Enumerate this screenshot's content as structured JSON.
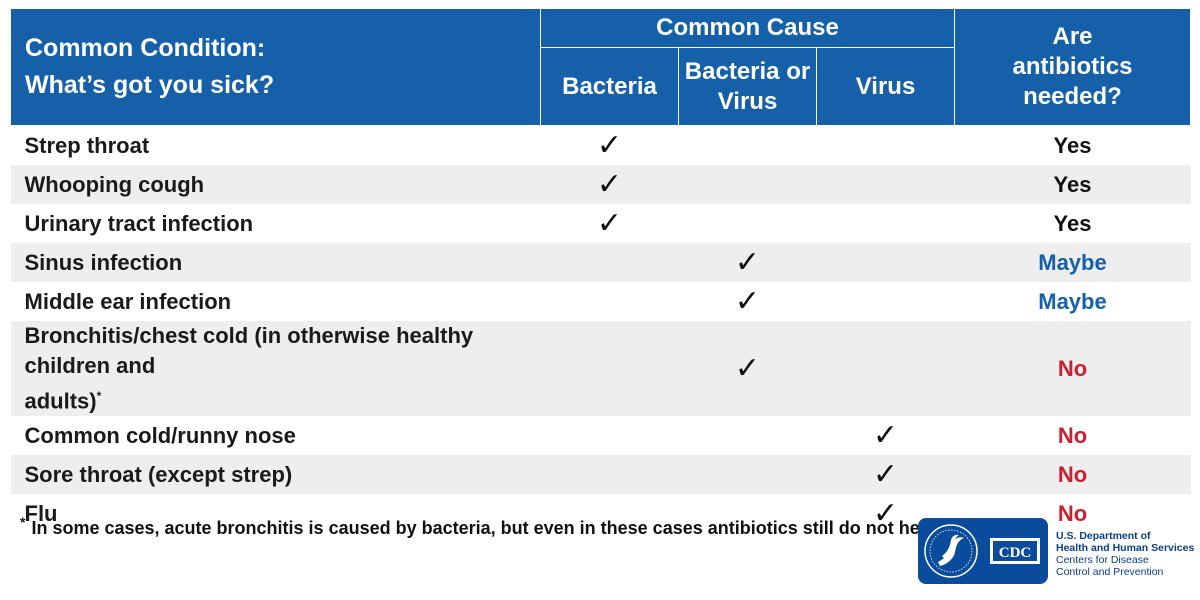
{
  "header": {
    "condition_line1": "Common Condition:",
    "condition_line2": "What’s got you sick?",
    "common_cause": "Common Cause",
    "bacteria": "Bacteria",
    "bacteria_or_virus_line1": "Bacteria or",
    "bacteria_or_virus_line2": "Virus",
    "virus": "Virus",
    "antibiotics_line1": "Are",
    "antibiotics_line2": "antibiotics",
    "antibiotics_line3": "needed?"
  },
  "check_glyph": "✓",
  "colors": {
    "header_blue": "#1560a8",
    "maybe_blue": "#1560a8",
    "no_red": "#cc1f2f",
    "row_stripe": "#eeeeee"
  },
  "rows": [
    {
      "condition": "Strep throat",
      "cause": "bacteria",
      "answer": "Yes"
    },
    {
      "condition": "Whooping cough",
      "cause": "bacteria",
      "answer": "Yes"
    },
    {
      "condition": "Urinary tract infection",
      "cause": "bacteria",
      "answer": "Yes"
    },
    {
      "condition": "Sinus infection",
      "cause": "bacteria_or_virus",
      "answer": "Maybe"
    },
    {
      "condition": "Middle ear infection",
      "cause": "bacteria_or_virus",
      "answer": "Maybe"
    },
    {
      "condition_line1": "Bronchitis/chest cold (in otherwise healthy children and",
      "condition_line2": "adults)",
      "marker": "*",
      "cause": "bacteria_or_virus",
      "answer": "No"
    },
    {
      "condition": "Common cold/runny nose",
      "cause": "virus",
      "answer": "No"
    },
    {
      "condition": "Sore throat (except strep)",
      "cause": "virus",
      "answer": "No"
    },
    {
      "condition": "Flu",
      "cause": "virus",
      "answer": "No"
    }
  ],
  "footnote": {
    "marker": "*",
    "text": "In some cases, acute bronchitis is caused by bacteria, but even in these cases antibiotics still do not help."
  },
  "logo": {
    "seal_icon": "hhs-seal-icon",
    "cdc_text": "CDC",
    "agency_line1": "U.S. Department of",
    "agency_line2": "Health and Human Services",
    "agency_line3": "Centers for Disease",
    "agency_line4": "Control and Prevention"
  }
}
